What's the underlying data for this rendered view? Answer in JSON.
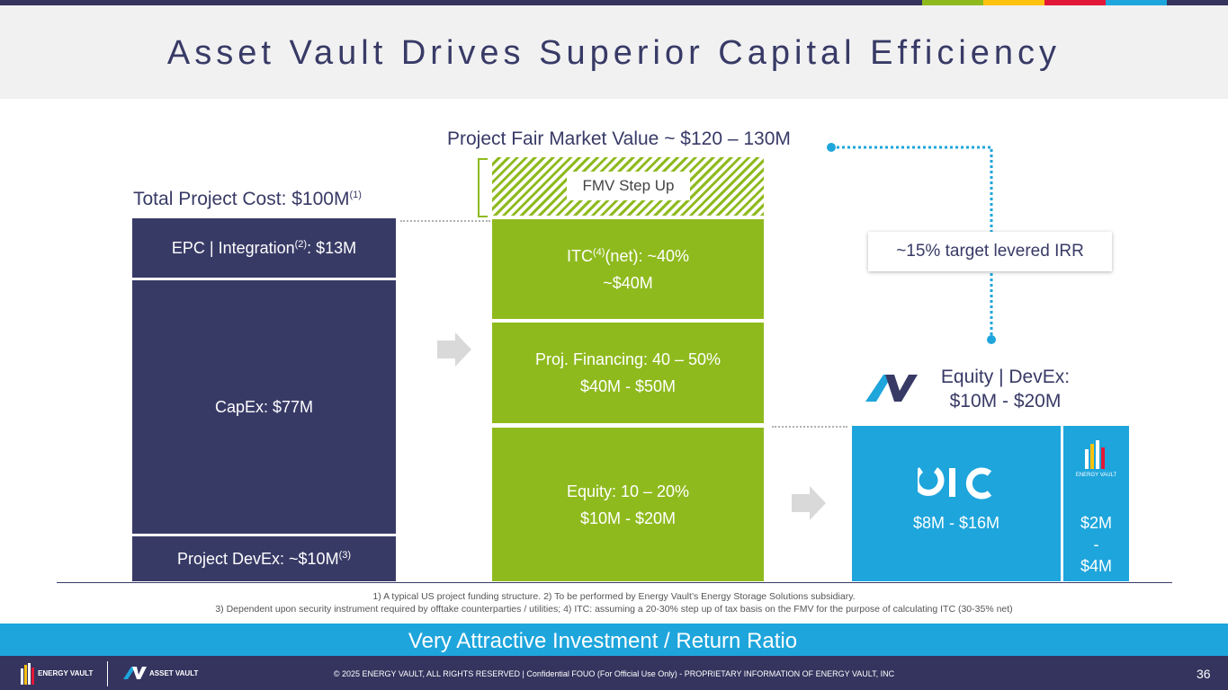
{
  "title": "Asset Vault Drives Superior Capital Efficiency",
  "top_colors": [
    "#8fba1e",
    "#ffc20e",
    "#e31837",
    "#1ea5dc"
  ],
  "left_column": {
    "header": "Total Project Cost: $100M",
    "header_sup": "(1)",
    "epc_label": "EPC | Integration",
    "epc_sup": "(2)",
    "epc_value": ": $13M",
    "capex": "CapEx: $77M",
    "devex_label": "Project DevEx: ~$10M",
    "devex_sup": "(3)"
  },
  "middle_column": {
    "header": "Project Fair Market Value ~ $120 – 130M",
    "fmv_step_up": "FMV Step Up",
    "itc_label_a": "ITC",
    "itc_sup": "(4)",
    "itc_label_b": "(net): ~40%",
    "itc_value": "~$40M",
    "financing_label": "Proj. Financing: 40 – 50%",
    "financing_value": "$40M - $50M",
    "equity_label": "Equity: 10 – 20%",
    "equity_value": "$10M - $20M"
  },
  "right_column": {
    "irr": "~15% target levered IRR",
    "equity_header_1": "Equity | DevEx:",
    "equity_header_2": "$10M - $20M",
    "oic_logo_text": "OIC",
    "oic_value": "$8M - $16M",
    "ev_logo_text": "ENERGY VAULT",
    "ev_value_1": "$2M",
    "ev_value_2": "-",
    "ev_value_3": "$4M"
  },
  "footnotes": {
    "line1": "1) A typical US project funding structure.    2) To be performed by Energy Vault’s Energy Storage Solutions subsidiary.",
    "line2": "3) Dependent upon security instrument required by offtake counterparties / utilities;   4) ITC: assuming a 20-30% step up of tax basis on the FMV for the purpose of calculating ITC (30-35% net)"
  },
  "banner": "Very Attractive Investment / Return Ratio",
  "footer": {
    "energy_vault_logo": "ENERGY VAULT",
    "asset_vault_logo": "ASSET VAULT",
    "copyright": "© 2025 ENERGY VAULT, ALL RIGHTS RESERVED  |  Confidential FOUO (For Official Use Only) - PROPRIETARY INFORMATION OF ENERGY VAULT, INC",
    "page_number": "36"
  }
}
